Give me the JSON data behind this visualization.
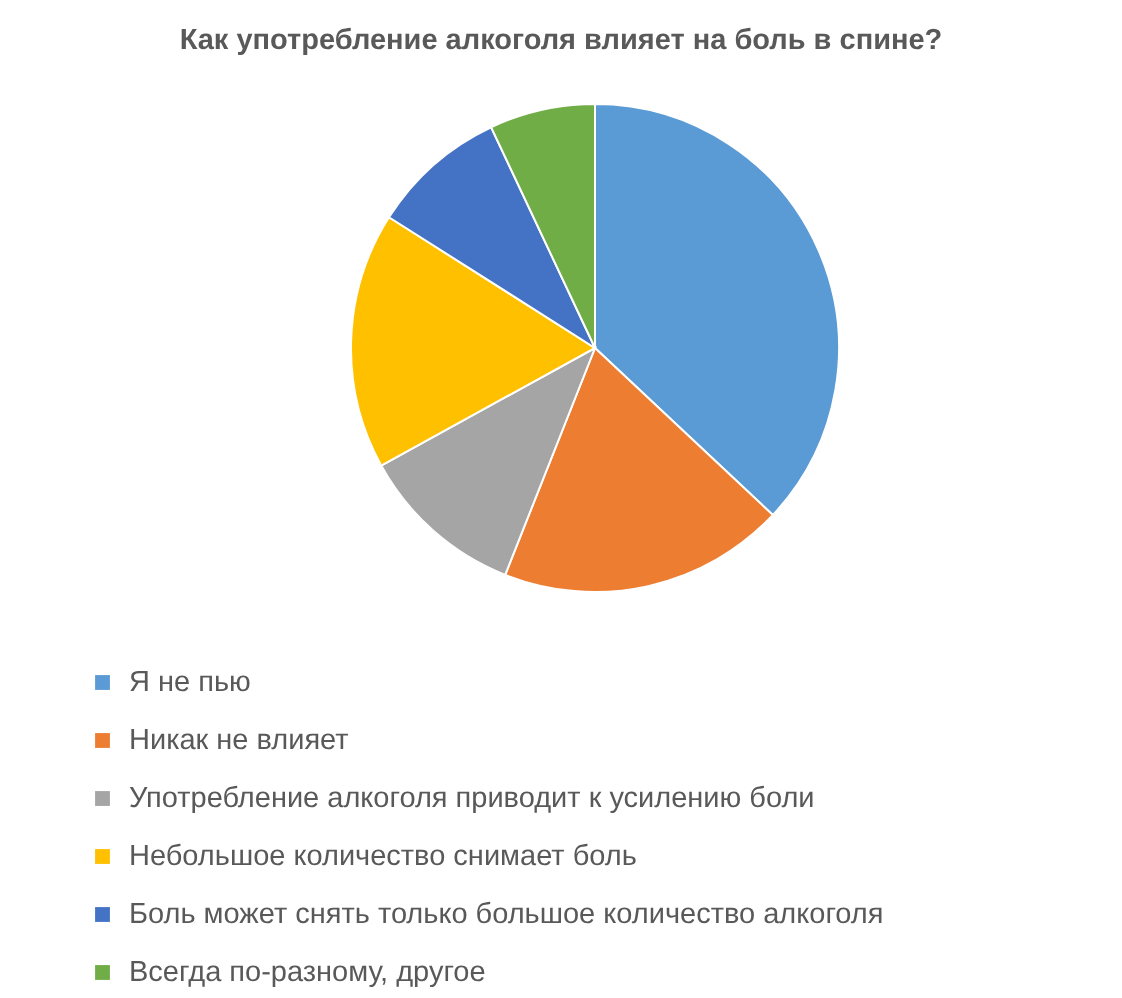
{
  "chart_data": {
    "type": "pie",
    "title": "Как употребление алкоголя влияет на боль в спине?",
    "categories": [
      "Я не пью",
      "Никак не влияет",
      "Употребление алкоголя приводит к усилению боли",
      "Небольшое количество снимает боль",
      "Боль может снять только большое количество алкоголя",
      "Всегда по-разному, другое"
    ],
    "values": [
      37,
      19,
      11,
      17,
      9,
      7
    ],
    "colors": [
      "#5b9bd5",
      "#ed7d31",
      "#a5a5a5",
      "#ffc000",
      "#4472c4",
      "#70ad47"
    ],
    "legend": "bottom"
  }
}
